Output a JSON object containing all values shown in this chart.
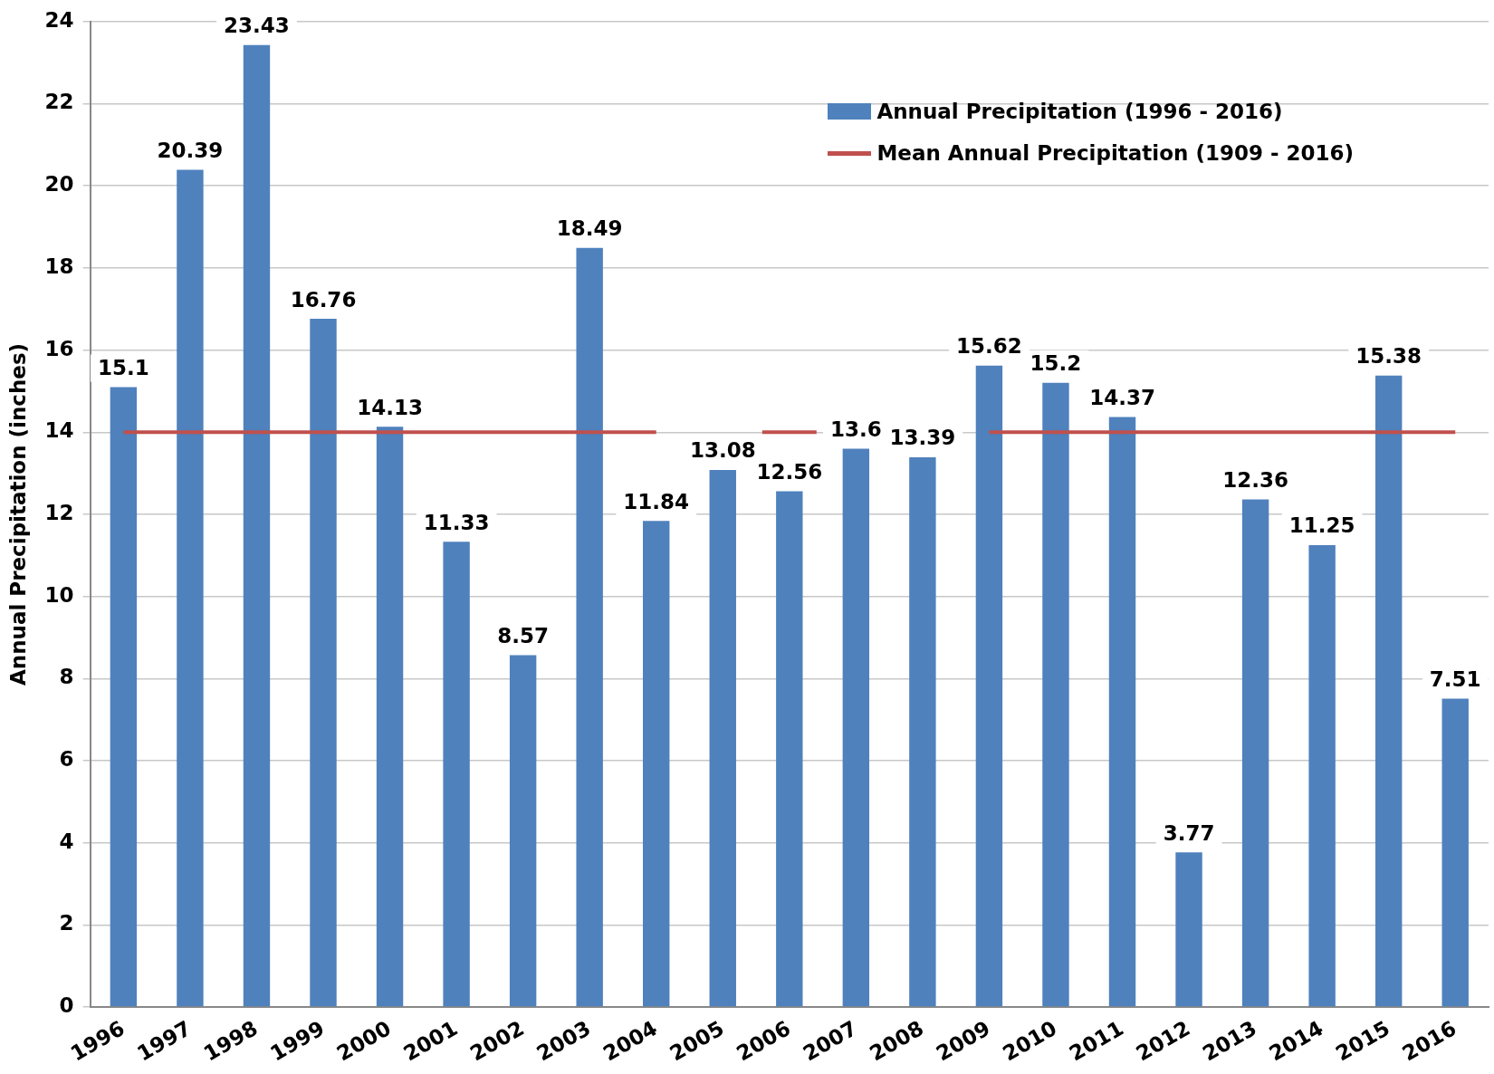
{
  "chart_data": {
    "type": "bar",
    "ylabel": "Annual Precipitation (inches)",
    "categories": [
      "1996",
      "1997",
      "1998",
      "1999",
      "2000",
      "2001",
      "2002",
      "2003",
      "2004",
      "2005",
      "2006",
      "2007",
      "2008",
      "2009",
      "2010",
      "2011",
      "2012",
      "2013",
      "2014",
      "2015",
      "2016"
    ],
    "series": [
      {
        "name": "Annual Precipitation (1996 - 2016)",
        "color": "#4f81bd",
        "values": [
          15.1,
          20.39,
          23.43,
          16.76,
          14.13,
          11.33,
          8.57,
          18.49,
          11.84,
          13.08,
          12.56,
          13.6,
          13.39,
          15.62,
          15.2,
          14.37,
          3.77,
          12.36,
          11.25,
          15.38,
          7.51
        ],
        "value_labels": [
          "15.1",
          "20.39",
          "23.43",
          "16.76",
          "14.13",
          "11.33",
          "8.57",
          "18.49",
          "11.84",
          "13.08",
          "12.56",
          "13.6",
          "13.39",
          "15.62",
          "15.2",
          "14.37",
          "3.77",
          "12.36",
          "11.25",
          "15.38",
          "7.51"
        ]
      },
      {
        "name": "Mean Annual Precipitation (1909 - 2016)",
        "type": "line",
        "color": "#c0504d",
        "values": [
          14,
          14,
          14,
          14,
          14,
          14,
          14,
          14,
          14,
          null,
          14,
          null,
          null,
          14,
          14,
          14,
          14,
          14,
          14,
          14,
          14
        ]
      }
    ],
    "ylim": [
      0,
      24
    ],
    "yticks": [
      0,
      2,
      4,
      6,
      8,
      10,
      12,
      14,
      16,
      18,
      20,
      22,
      24
    ],
    "grid": "y",
    "legend": "top right",
    "marker": "none"
  }
}
